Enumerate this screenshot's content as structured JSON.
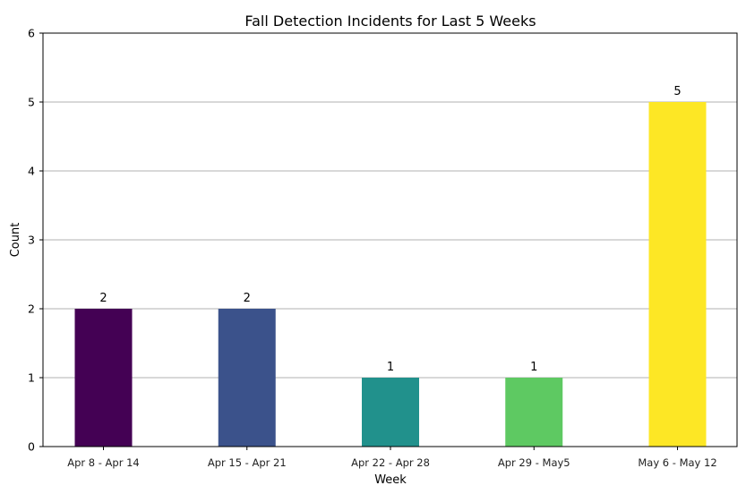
{
  "chart_data": {
    "type": "bar",
    "title": "Fall Detection Incidents for Last 5 Weeks",
    "xlabel": "Week",
    "ylabel": "Count",
    "categories": [
      "Apr 8 - Apr 14",
      "Apr 15 - Apr 21",
      "Apr 22 - Apr 28",
      "Apr 29 - May5",
      "May 6 - May 12"
    ],
    "values": [
      2,
      2,
      1,
      1,
      5
    ],
    "colors": [
      "#440154",
      "#3b528b",
      "#21918c",
      "#5ec962",
      "#fde725"
    ],
    "ylim": [
      0,
      6
    ],
    "yticks": [
      0,
      1,
      2,
      3,
      4,
      5,
      6
    ],
    "grid": "y",
    "legend": "none"
  }
}
